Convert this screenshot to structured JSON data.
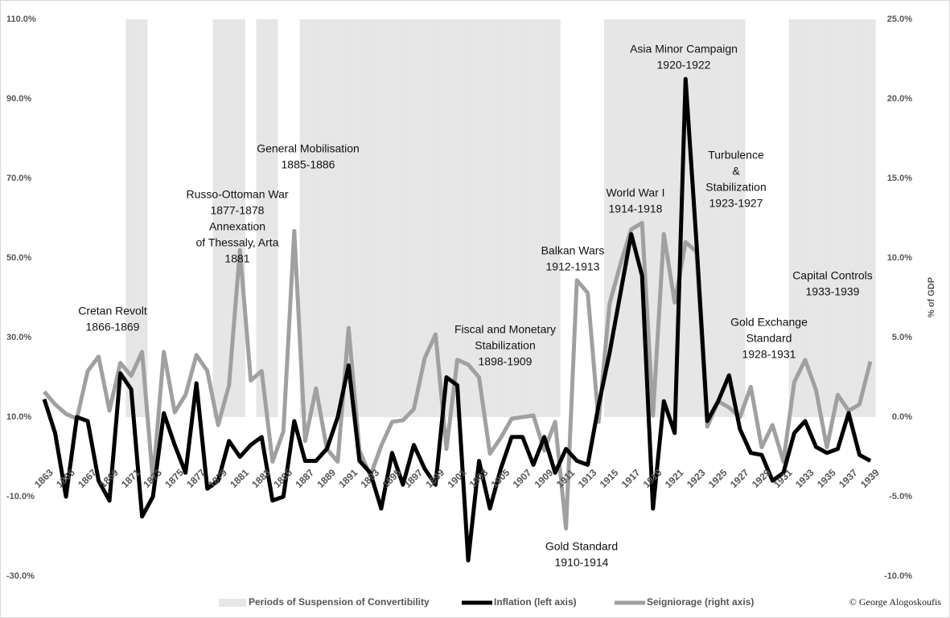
{
  "chart_data": {
    "type": "line",
    "categories": [
      "1863",
      null,
      "1865",
      null,
      "1867",
      null,
      "1869",
      null,
      "1871",
      null,
      "1873",
      null,
      "1875",
      null,
      "1877",
      null,
      "1879",
      null,
      "1881",
      null,
      "1883",
      null,
      "1885",
      null,
      "1887",
      null,
      "1889",
      null,
      "1891",
      null,
      "1893",
      null,
      "1895",
      null,
      "1897",
      null,
      "1899",
      null,
      "1901",
      null,
      "1903",
      null,
      "1905",
      null,
      "1907",
      null,
      "1909",
      null,
      "1911",
      null,
      "1913",
      null,
      "1915",
      null,
      "1917",
      null,
      "1919",
      null,
      "1921",
      null,
      "1923",
      null,
      "1925",
      null,
      "1927",
      null,
      "1929",
      null,
      "1931",
      null,
      "1933",
      null,
      "1935",
      null,
      "1937",
      null,
      "1939"
    ],
    "series": [
      {
        "name": "Periods of Suspension of Convertibility",
        "color": "#e7e6e6",
        "kind": "bar",
        "axis": "y2",
        "values": [
          0,
          0,
          0,
          0,
          0,
          0,
          0,
          0,
          25,
          25,
          0,
          0,
          0,
          0,
          0,
          0,
          25,
          25,
          25,
          0,
          25,
          25,
          0,
          0,
          25,
          25,
          25,
          25,
          25,
          25,
          25,
          25,
          25,
          25,
          25,
          25,
          25,
          25,
          25,
          25,
          25,
          25,
          25,
          25,
          25,
          25,
          25,
          25,
          0,
          0,
          0,
          0,
          25,
          25,
          25,
          25,
          25,
          25,
          25,
          25,
          25,
          25,
          25,
          25,
          25,
          0,
          0,
          0,
          0,
          25,
          25,
          25,
          25,
          25,
          25,
          25,
          25
        ]
      },
      {
        "name": "Inflation (left axis)",
        "color": "#000000",
        "values": [
          14.5,
          6,
          -10,
          10,
          9,
          -6,
          -11,
          21,
          17,
          -15,
          -10,
          11,
          3,
          -4,
          18.5,
          -8,
          -6,
          4,
          0,
          3,
          5,
          -11,
          -10,
          9,
          -1,
          -1,
          2,
          10,
          23,
          -1,
          -4,
          -13,
          1,
          -7,
          3,
          -3,
          -7,
          20,
          18,
          -26,
          -1,
          -13,
          -3,
          5,
          5,
          -2,
          5,
          -4,
          2,
          -1,
          -2,
          13,
          26,
          41,
          56,
          45.5,
          -13,
          14,
          6,
          95,
          54,
          9,
          14,
          20.5,
          7,
          1,
          0.5,
          -6,
          -4,
          6,
          9,
          2.5,
          1,
          2,
          11,
          0.5,
          -1
        ]
      },
      {
        "name": "Seigniorage (right axis)",
        "color": "#a0a0a0",
        "axis": "y2",
        "values": [
          1.6,
          0.8,
          0.2,
          -0.1,
          2.9,
          3.8,
          0.4,
          3.4,
          2.6,
          4.1,
          -4,
          4.1,
          0.3,
          1.4,
          3.9,
          2.9,
          -0.5,
          2,
          10.5,
          2.3,
          2.9,
          -2.8,
          -0.9,
          11.7,
          -1.5,
          1.8,
          -2,
          -2.8,
          5.6,
          -2.1,
          -3.7,
          -1.8,
          -0.3,
          -0.2,
          0.5,
          3.7,
          5.2,
          -2,
          3.6,
          3.3,
          2.5,
          -2.3,
          -1.3,
          -0.1,
          0,
          0.1,
          -2.1,
          -0.3,
          -7,
          8.6,
          7.8,
          -0.3,
          7.1,
          9.6,
          11.8,
          12.2,
          0.1,
          11.5,
          7.2,
          11,
          10.4,
          -0.6,
          1,
          0.6,
          0,
          1.9,
          -1.9,
          -0.5,
          -2.8,
          2.2,
          3.6,
          1.7,
          -1.9,
          1.4,
          0.4,
          0.8,
          3.5
        ]
      }
    ],
    "ylim": [
      -30,
      110
    ],
    "yticks": [
      {
        "value": -30,
        "label": "-30.0%"
      },
      {
        "value": -10,
        "label": "-10.0%"
      },
      {
        "value": 10,
        "label": "10.0%"
      },
      {
        "value": 30,
        "label": "30.0%"
      },
      {
        "value": 50,
        "label": "50.0%"
      },
      {
        "value": 70,
        "label": "70.0%"
      },
      {
        "value": 90,
        "label": "90.0%"
      },
      {
        "value": 110,
        "label": "110.0%"
      }
    ],
    "y2lim": [
      -10,
      25
    ],
    "y2ticks": [
      {
        "value": -10,
        "label": "-10.0%"
      },
      {
        "value": -5,
        "label": "-5.0%"
      },
      {
        "value": 0,
        "label": "0.0%"
      },
      {
        "value": 5,
        "label": "5.0%"
      },
      {
        "value": 10,
        "label": "10.0%"
      },
      {
        "value": 15,
        "label": "15.0%"
      },
      {
        "value": 20,
        "label": "20.0%"
      },
      {
        "value": 25,
        "label": "25.0%"
      }
    ],
    "y2label": "% of GDP",
    "legend": "bottom",
    "annotations": [
      [
        "Cretan Revolt",
        "1866-1869"
      ],
      [
        "Russo-Ottoman War",
        "1877-1878",
        "Annexation",
        "of Thessaly, Arta",
        "1881"
      ],
      [
        "General Mobilisation",
        "1885-1886"
      ],
      [
        "Fiscal and Monetary",
        "Stabilization",
        "1898-1909"
      ],
      [
        "Balkan Wars",
        "1912-1913"
      ],
      [
        "Gold Standard",
        "1910-1914"
      ],
      [
        "World War I",
        "1914-1918"
      ],
      [
        "Asia Minor Campaign",
        "1920-1922"
      ],
      [
        "Turbulence",
        "&",
        "Stabilization",
        "1923-1927"
      ],
      [
        "Capital Controls",
        "1933-1939"
      ],
      [
        "Gold Exchange",
        "Standard",
        "1928-1931"
      ]
    ],
    "note": "© George Alogoskoufis"
  }
}
